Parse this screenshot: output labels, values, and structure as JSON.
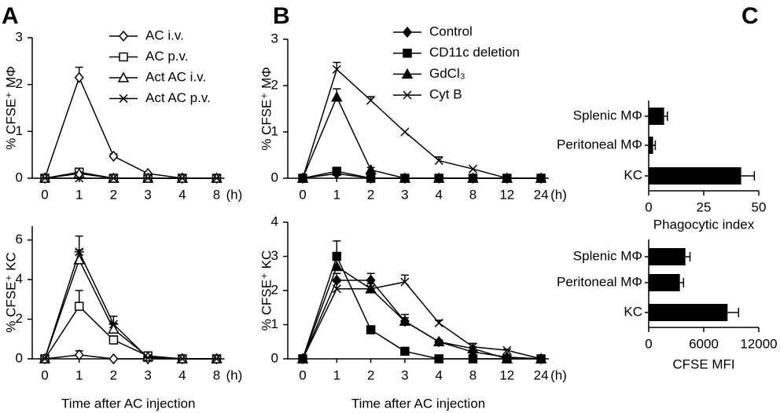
{
  "chart_data": [
    {
      "type": "line",
      "panel": "A",
      "ylabel": "% CFSE⁺ MΦ",
      "categories": [
        "0",
        "1",
        "2",
        "3",
        "4",
        "8"
      ],
      "x_unit": "(h)",
      "ylim": [
        0,
        3
      ],
      "yticks": [
        0,
        1,
        2,
        3
      ],
      "series": [
        {
          "name": "AC i.v.",
          "marker": "diamond-open",
          "color": "#000000",
          "values": [
            0,
            2.15,
            0.47,
            0.1,
            0,
            0
          ],
          "errors": [
            0,
            0.22,
            0.05,
            0,
            0,
            0
          ]
        },
        {
          "name": "AC p.v.",
          "marker": "square-open",
          "color": "#000000",
          "values": [
            0,
            0.13,
            0,
            0,
            0,
            0
          ],
          "errors": [
            0,
            0.03,
            0,
            0,
            0,
            0
          ]
        },
        {
          "name": "Act AC i.v.",
          "marker": "triangle-open",
          "color": "#000000",
          "values": [
            0,
            0.1,
            0,
            0,
            0,
            0
          ],
          "errors": [
            0,
            0.03,
            0,
            0,
            0,
            0
          ]
        },
        {
          "name": "Act AC p.v.",
          "marker": "star",
          "color": "#000000",
          "values": [
            0,
            0,
            0,
            0,
            0,
            0
          ],
          "errors": [
            0,
            0,
            0,
            0,
            0,
            0
          ]
        }
      ]
    },
    {
      "type": "line",
      "ylabel": "% CFSE⁺ KC",
      "xlabel": "Time after AC injection",
      "categories": [
        "0",
        "1",
        "2",
        "3",
        "4",
        "8"
      ],
      "x_unit": "(h)",
      "ylim": [
        0,
        6.7
      ],
      "yticks": [
        0,
        2,
        4,
        6
      ],
      "series": [
        {
          "name": "AC i.v.",
          "marker": "diamond-open",
          "color": "#000000",
          "values": [
            0,
            0.2,
            0,
            0,
            0,
            0
          ],
          "errors": [
            0,
            0.2,
            0,
            0,
            0,
            0
          ]
        },
        {
          "name": "AC p.v.",
          "marker": "square-open",
          "color": "#000000",
          "values": [
            0,
            2.65,
            0.95,
            0.15,
            0,
            0
          ],
          "errors": [
            0,
            0.8,
            0.2,
            0.05,
            0,
            0
          ]
        },
        {
          "name": "Act AC i.v.",
          "marker": "triangle-open",
          "color": "#000000",
          "values": [
            0,
            5.0,
            1.5,
            0.1,
            0,
            0
          ],
          "errors": [
            0,
            0.5,
            0.3,
            0.05,
            0,
            0
          ]
        },
        {
          "name": "Act AC p.v.",
          "marker": "star",
          "color": "#000000",
          "values": [
            0,
            5.4,
            1.75,
            0.05,
            0,
            0
          ],
          "errors": [
            0,
            0.8,
            0.4,
            0.05,
            0,
            0
          ]
        }
      ]
    },
    {
      "type": "line",
      "panel": "B",
      "ylabel": "% CFSE⁺ MΦ",
      "categories": [
        "0",
        "1",
        "2",
        "3",
        "4",
        "8",
        "12",
        "24"
      ],
      "x_unit": "(h)",
      "ylim": [
        0,
        3
      ],
      "yticks": [
        0,
        1,
        2,
        3
      ],
      "series": [
        {
          "name": "Control",
          "marker": "diamond",
          "color": "#000000",
          "values": [
            0,
            0.1,
            0,
            0,
            0,
            0,
            0,
            0
          ],
          "errors": [
            0,
            0.03,
            0,
            0,
            0,
            0,
            0,
            0
          ]
        },
        {
          "name": "CD11c deletion",
          "marker": "square",
          "color": "#000000",
          "values": [
            0,
            0.15,
            0,
            0,
            0,
            0,
            0,
            0
          ],
          "errors": [
            0,
            0.05,
            0,
            0,
            0,
            0,
            0,
            0
          ]
        },
        {
          "name": "GdCl₃",
          "marker": "triangle",
          "color": "#000000",
          "values": [
            0,
            1.75,
            0.18,
            0,
            0,
            0,
            0,
            0
          ],
          "errors": [
            0,
            0.18,
            0.05,
            0,
            0,
            0,
            0,
            0
          ]
        },
        {
          "name": "Cyt B",
          "marker": "x",
          "color": "#000000",
          "values": [
            0,
            2.35,
            1.68,
            1.0,
            0.38,
            0.2,
            0,
            0
          ],
          "errors": [
            0,
            0.15,
            0.08,
            0,
            0.08,
            0,
            0,
            0
          ]
        }
      ]
    },
    {
      "type": "line",
      "ylabel": "% CFSE⁺ KC",
      "xlabel": "Time after AC injection",
      "categories": [
        "0",
        "1",
        "2",
        "3",
        "4",
        "8",
        "12",
        "24"
      ],
      "x_unit": "(h)",
      "ylim": [
        0,
        4
      ],
      "yticks": [
        0,
        1,
        2,
        3,
        4
      ],
      "series": [
        {
          "name": "Control",
          "marker": "diamond",
          "color": "#000000",
          "values": [
            0,
            2.3,
            2.3,
            1.1,
            0.5,
            0.2,
            0.05,
            0
          ],
          "errors": [
            0,
            0.2,
            0.2,
            0.1,
            0.05,
            0,
            0,
            0
          ]
        },
        {
          "name": "CD11c deletion",
          "marker": "square",
          "color": "#000000",
          "values": [
            0,
            3.0,
            0.85,
            0.22,
            0,
            0,
            0,
            0
          ],
          "errors": [
            0,
            0.45,
            0.08,
            0.05,
            0,
            0,
            0,
            0
          ]
        },
        {
          "name": "GdCl₃",
          "marker": "triangle",
          "color": "#000000",
          "values": [
            0,
            2.7,
            2.05,
            1.1,
            0.5,
            0.3,
            0,
            0
          ],
          "errors": [
            0,
            0.25,
            0.25,
            0.2,
            0.05,
            0.05,
            0,
            0
          ]
        },
        {
          "name": "Cyt B",
          "marker": "x",
          "color": "#000000",
          "values": [
            0,
            2.05,
            2.05,
            2.25,
            1.05,
            0.35,
            0.25,
            0
          ],
          "errors": [
            0,
            0.2,
            0.15,
            0.2,
            0.08,
            0.1,
            0.03,
            0
          ]
        }
      ]
    },
    {
      "type": "hbar",
      "panel": "C",
      "xlabel": "Phagocytic index",
      "categories": [
        "Splenic MΦ",
        "Peritoneal MΦ",
        "KC"
      ],
      "values": [
        7,
        2,
        42
      ],
      "errors": [
        1.5,
        1,
        6
      ],
      "color": "#000000",
      "xlim": [
        0,
        50
      ],
      "xticks": [
        0,
        25,
        50
      ]
    },
    {
      "type": "hbar",
      "xlabel": "CFSE MFI",
      "categories": [
        "Splenic MΦ",
        "Peritoneal MΦ",
        "KC"
      ],
      "values": [
        4000,
        3400,
        8600
      ],
      "errors": [
        500,
        400,
        1200
      ],
      "color": "#000000",
      "xlim": [
        0,
        12000
      ],
      "xticks": [
        0,
        6000,
        12000
      ]
    }
  ]
}
